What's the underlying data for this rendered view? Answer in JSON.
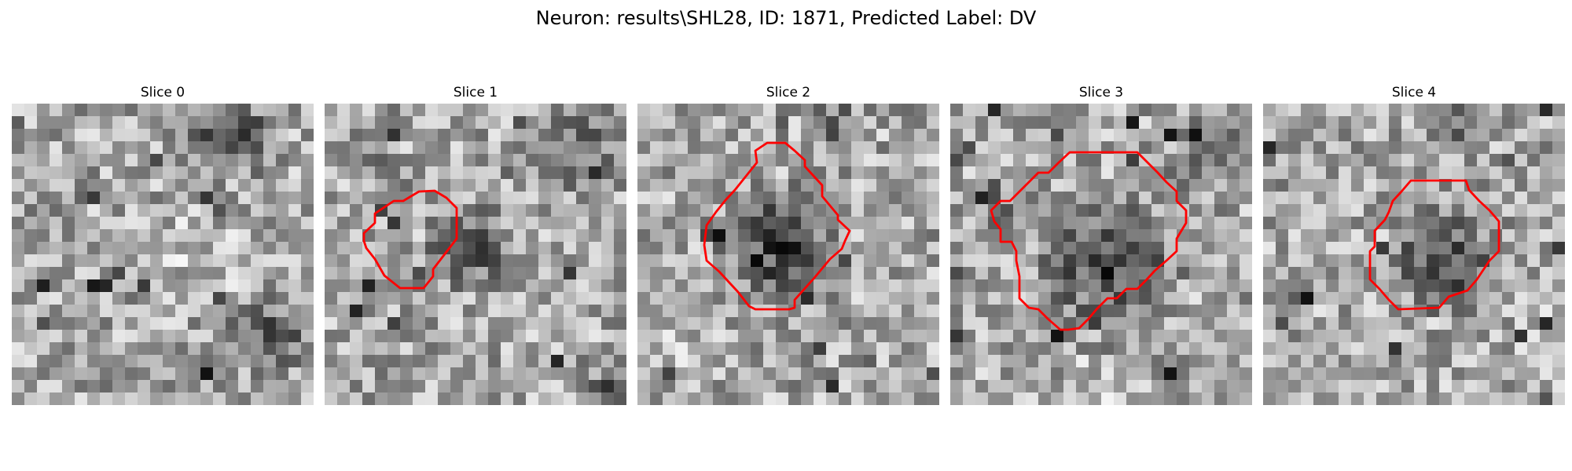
{
  "figure": {
    "title": "Neuron: results\\SHL28, ID: 1871, Predicted Label: DV"
  },
  "colors": {
    "background": "#ffffff",
    "contour": "#ff0000",
    "colormap": "grayscale"
  },
  "panels": [
    {
      "title": "Slice 0",
      "has_contour": false,
      "contour_color": "#ff0000"
    },
    {
      "title": "Slice 1",
      "has_contour": true,
      "contour_color": "#ff0000"
    },
    {
      "title": "Slice 2",
      "has_contour": true,
      "contour_color": "#ff0000"
    },
    {
      "title": "Slice 3",
      "has_contour": true,
      "contour_color": "#ff0000"
    },
    {
      "title": "Slice 4",
      "has_contour": true,
      "contour_color": "#ff0000"
    }
  ]
}
